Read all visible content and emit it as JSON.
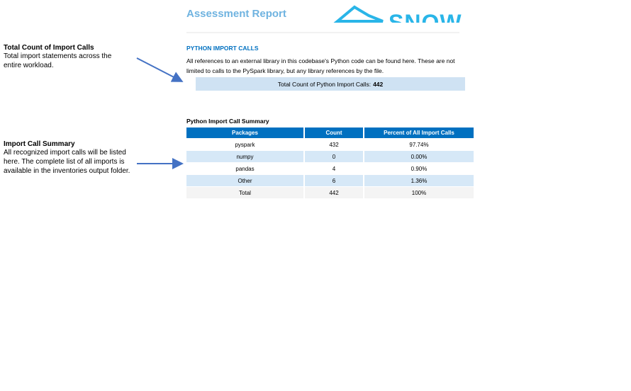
{
  "header": {
    "title": "Assessment Report",
    "logo_text": "SNOW"
  },
  "annotations": [
    {
      "title": "Total Count of Import Calls",
      "body": "Total import statements across the entire workload."
    },
    {
      "title": "Import Call Summary",
      "body": "All recognized import calls will be listed here. The complete list of all imports is available in the inventories output folder."
    }
  ],
  "section": {
    "title": "PYTHON IMPORT CALLS",
    "description": "All references to an external library in this codebase's Python code can be found here. These are not limited to calls to the PySpark library, but any library references by the file.",
    "total_label": "Total Count of Python Import Calls:",
    "total_value": "442"
  },
  "table": {
    "title": "Python Import Call Summary",
    "columns": [
      "Packages",
      "Count",
      "Percent of All Import Calls"
    ],
    "rows": [
      [
        "pyspark",
        "432",
        "97.74%"
      ],
      [
        "numpy",
        "0",
        "0.00%"
      ],
      [
        "pandas",
        "4",
        "0.90%"
      ],
      [
        "Other",
        "6",
        "1.36%"
      ],
      [
        "Total",
        "442",
        "100%"
      ]
    ]
  }
}
